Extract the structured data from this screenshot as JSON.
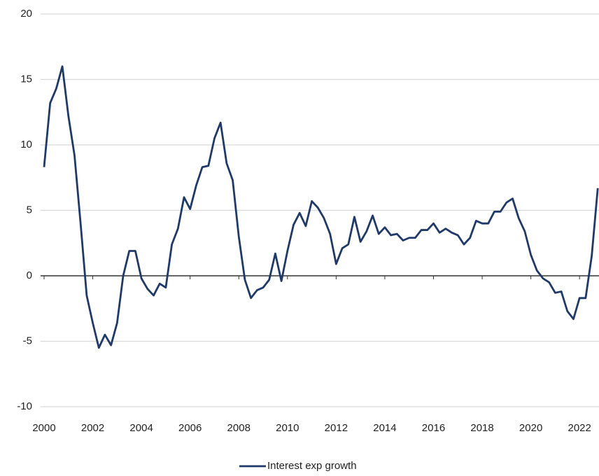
{
  "chart_data": {
    "type": "line",
    "x": [
      2000,
      2000.25,
      2000.5,
      2000.75,
      2001,
      2001.25,
      2001.5,
      2001.75,
      2002,
      2002.25,
      2002.5,
      2002.75,
      2003,
      2003.25,
      2003.5,
      2003.75,
      2004,
      2004.25,
      2004.5,
      2004.75,
      2005,
      2005.25,
      2005.5,
      2005.75,
      2006,
      2006.25,
      2006.5,
      2006.75,
      2007,
      2007.25,
      2007.5,
      2007.75,
      2008,
      2008.25,
      2008.5,
      2008.75,
      2009,
      2009.25,
      2009.5,
      2009.75,
      2010,
      2010.25,
      2010.5,
      2010.75,
      2011,
      2011.25,
      2011.5,
      2011.75,
      2012,
      2012.25,
      2012.5,
      2012.75,
      2013,
      2013.25,
      2013.5,
      2013.75,
      2014,
      2014.25,
      2014.5,
      2014.75,
      2015,
      2015.25,
      2015.5,
      2015.75,
      2016,
      2016.25,
      2016.5,
      2016.75,
      2017,
      2017.25,
      2017.5,
      2017.75,
      2018,
      2018.25,
      2018.5,
      2018.75,
      2019,
      2019.25,
      2019.5,
      2019.75,
      2020,
      2020.25,
      2020.5,
      2020.75,
      2021,
      2021.25,
      2021.5,
      2021.75,
      2022,
      2022.25,
      2022.5,
      2022.75
    ],
    "series": [
      {
        "name": "Interest exp growth",
        "color": "#1f3a68",
        "values": [
          8.3,
          13.2,
          14.3,
          16.0,
          12.2,
          9.2,
          4.0,
          -1.5,
          -3.6,
          -5.5,
          -4.5,
          -5.3,
          -3.6,
          0.0,
          1.9,
          1.9,
          -0.2,
          -1.0,
          -1.5,
          -0.6,
          -0.9,
          2.4,
          3.6,
          6.0,
          5.1,
          6.9,
          8.3,
          8.4,
          10.5,
          11.7,
          8.6,
          7.3,
          3.0,
          -0.3,
          -1.7,
          -1.1,
          -0.9,
          -0.3,
          1.7,
          -0.4,
          1.9,
          3.9,
          4.8,
          3.8,
          5.7,
          5.2,
          4.4,
          3.2,
          0.9,
          2.1,
          2.4,
          4.5,
          2.6,
          3.4,
          4.6,
          3.2,
          3.7,
          3.1,
          3.2,
          2.7,
          2.9,
          2.9,
          3.5,
          3.5,
          4.0,
          3.3,
          3.6,
          3.3,
          3.1,
          2.4,
          2.9,
          4.2,
          4.0,
          4.0,
          4.9,
          4.9,
          5.6,
          5.9,
          4.4,
          3.4,
          1.6,
          0.4,
          -0.2,
          -0.5,
          -1.3,
          -1.2,
          -2.7,
          -3.3,
          -1.7,
          -1.7,
          1.5,
          6.7
        ]
      }
    ],
    "xlim": [
      2000,
      2022.8
    ],
    "xticks": [
      2000,
      2002,
      2004,
      2006,
      2008,
      2010,
      2012,
      2014,
      2016,
      2018,
      2020,
      2022
    ],
    "ylim": [
      -10,
      20
    ],
    "yticks": [
      -10,
      -5,
      0,
      5,
      10,
      15,
      20
    ],
    "grid": true
  }
}
